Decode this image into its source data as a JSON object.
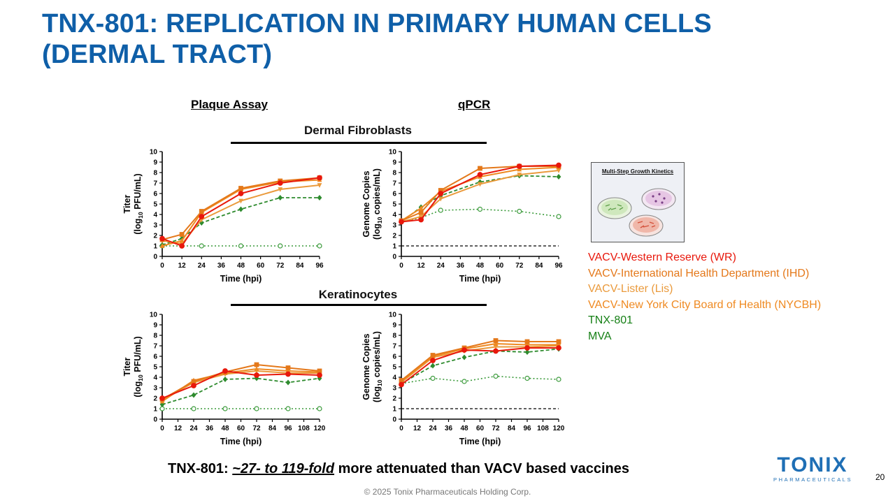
{
  "slide": {
    "title_line1": "TNX-801: REPLICATION IN PRIMARY HUMAN CELLS",
    "title_line2": "(DERMAL TRACT)",
    "col_plaque": "Plaque Assay",
    "col_qpcr": "qPCR",
    "section_fibroblasts": "Dermal Fibroblasts",
    "section_keratinocytes": "Keratinocytes",
    "inset_title": "Multi-Step Growth Kinetics",
    "bottom_prefix": "TNX-801: ",
    "bottom_tilde": "~",
    "bottom_fold": "27- to 119-fold",
    "bottom_suffix": " more attenuated than VACV based vaccines",
    "logo_word": "TONIX",
    "logo_sub": "PHARMACEUTICALS",
    "page_number": "20",
    "copyright": "© 2025 Tonix Pharmaceuticals Holding Corp."
  },
  "colors": {
    "title": "#0f5fa8",
    "WR": "#e8180c",
    "IHD": "#e4781a",
    "Lis": "#ea9a3c",
    "NYCBH": "#ef8a22",
    "TNX": "#2e8b2e",
    "MVA": "#3a9a3a"
  },
  "legend": [
    {
      "key": "WR",
      "label": "VACV-Western Reserve (WR)",
      "color": "#e8180c"
    },
    {
      "key": "IHD",
      "label": "VACV-International Health Department (IHD)",
      "color": "#e4781a"
    },
    {
      "key": "Lis",
      "label": "VACV-Lister (Lis)",
      "color": "#ea9a3c"
    },
    {
      "key": "NYCBH",
      "label": "VACV-New York City Board of Health (NYCBH)",
      "color": "#ef8a22"
    },
    {
      "key": "TNX",
      "label": "TNX-801",
      "color": "#168016"
    },
    {
      "key": "MVA",
      "label": "MVA",
      "color": "#168016"
    }
  ],
  "chart_data": [
    {
      "id": "fib-plaque",
      "type": "line",
      "section": "Dermal Fibroblasts",
      "assay": "Plaque Assay",
      "xlabel": "Time (hpi)",
      "ylabel_1": "Titer",
      "ylabel_2_pre": "(log",
      "ylabel_2_sub": "10",
      "ylabel_2_post": " PFU/mL)",
      "xlim": [
        0,
        96
      ],
      "ylim": [
        0,
        10
      ],
      "xticks": [
        0,
        12,
        24,
        36,
        48,
        60,
        72,
        84,
        96
      ],
      "yticks": [
        0,
        1,
        2,
        3,
        4,
        5,
        6,
        7,
        8,
        9,
        10
      ],
      "x": [
        0,
        12,
        24,
        48,
        72,
        96
      ],
      "series": [
        {
          "name": "WR",
          "values": [
            1.7,
            1.0,
            3.8,
            6.0,
            7.0,
            7.5
          ]
        },
        {
          "name": "IHD",
          "values": [
            1.6,
            2.1,
            4.3,
            6.5,
            7.2,
            7.5
          ]
        },
        {
          "name": "Lis",
          "values": [
            1.5,
            1.2,
            3.5,
            5.3,
            6.4,
            6.8
          ]
        },
        {
          "name": "NYCBH",
          "values": [
            1.0,
            1.5,
            4.2,
            6.4,
            7.1,
            7.3
          ]
        },
        {
          "name": "TNX-801",
          "values": [
            1.1,
            1.7,
            3.2,
            4.5,
            5.6,
            5.6
          ]
        },
        {
          "name": "MVA",
          "values": [
            1.0,
            1.0,
            1.0,
            1.0,
            1.0,
            1.0
          ]
        }
      ]
    },
    {
      "id": "fib-qpcr",
      "type": "line",
      "section": "Dermal Fibroblasts",
      "assay": "qPCR",
      "xlabel": "Time (hpi)",
      "ylabel_1": "Genome  Copies",
      "ylabel_2_pre": "(log",
      "ylabel_2_sub": "10",
      "ylabel_2_post": " copies/mL)",
      "xlim": [
        0,
        96
      ],
      "ylim": [
        0,
        10
      ],
      "xticks": [
        0,
        12,
        24,
        36,
        48,
        60,
        72,
        84,
        96
      ],
      "yticks": [
        0,
        1,
        2,
        3,
        4,
        5,
        6,
        7,
        8,
        9,
        10
      ],
      "reference_line": 1,
      "x": [
        0,
        12,
        24,
        48,
        72,
        96
      ],
      "series": [
        {
          "name": "WR",
          "values": [
            3.3,
            3.5,
            6.0,
            7.8,
            8.6,
            8.7
          ]
        },
        {
          "name": "IHD",
          "values": [
            3.4,
            4.2,
            6.3,
            8.4,
            8.6,
            8.6
          ]
        },
        {
          "name": "Lis",
          "values": [
            3.3,
            3.8,
            5.5,
            6.9,
            7.8,
            8.2
          ]
        },
        {
          "name": "NYCBH",
          "values": [
            3.4,
            4.6,
            6.2,
            7.6,
            8.3,
            8.5
          ]
        },
        {
          "name": "TNX-801",
          "values": [
            3.3,
            4.7,
            5.8,
            7.1,
            7.7,
            7.6
          ]
        },
        {
          "name": "MVA",
          "values": [
            3.3,
            3.7,
            4.4,
            4.5,
            4.3,
            3.8
          ]
        }
      ]
    },
    {
      "id": "ker-plaque",
      "type": "line",
      "section": "Keratinocytes",
      "assay": "Plaque Assay",
      "xlabel": "Time (hpi)",
      "ylabel_1": "Titer",
      "ylabel_2_pre": "(log",
      "ylabel_2_sub": "10",
      "ylabel_2_post": " PFU/mL)",
      "xlim": [
        0,
        120
      ],
      "ylim": [
        0,
        10
      ],
      "xticks": [
        0,
        12,
        24,
        36,
        48,
        60,
        72,
        84,
        96,
        108,
        120
      ],
      "yticks": [
        0,
        1,
        2,
        3,
        4,
        5,
        6,
        7,
        8,
        9,
        10
      ],
      "x": [
        0,
        24,
        48,
        72,
        96,
        120
      ],
      "series": [
        {
          "name": "WR",
          "values": [
            2.0,
            3.2,
            4.6,
            4.2,
            4.3,
            4.2
          ]
        },
        {
          "name": "IHD",
          "values": [
            1.9,
            3.6,
            4.5,
            5.2,
            4.9,
            4.6
          ]
        },
        {
          "name": "Lis",
          "values": [
            1.8,
            3.5,
            4.3,
            4.6,
            4.4,
            4.4
          ]
        },
        {
          "name": "NYCBH",
          "values": [
            1.7,
            3.7,
            4.4,
            4.8,
            4.6,
            4.5
          ]
        },
        {
          "name": "TNX-801",
          "values": [
            1.4,
            2.3,
            3.8,
            3.9,
            3.5,
            3.9
          ]
        },
        {
          "name": "MVA",
          "values": [
            1.0,
            1.0,
            1.0,
            1.0,
            1.0,
            1.0
          ]
        }
      ]
    },
    {
      "id": "ker-qpcr",
      "type": "line",
      "section": "Keratinocytes",
      "assay": "qPCR",
      "xlabel": "Time (hpi)",
      "ylabel_1": "Genome  Copies",
      "ylabel_2_pre": "(log",
      "ylabel_2_sub": "10",
      "ylabel_2_post": " copies/mL)",
      "xlim": [
        0,
        120
      ],
      "ylim": [
        0,
        10
      ],
      "xticks": [
        0,
        12,
        24,
        36,
        48,
        60,
        72,
        84,
        96,
        108,
        120
      ],
      "yticks": [
        0,
        1,
        2,
        3,
        4,
        5,
        6,
        7,
        8,
        9,
        10
      ],
      "reference_line": 1,
      "x": [
        0,
        24,
        48,
        72,
        96,
        120
      ],
      "series": [
        {
          "name": "WR",
          "values": [
            3.3,
            5.6,
            6.6,
            6.5,
            6.8,
            6.8
          ]
        },
        {
          "name": "IHD",
          "values": [
            3.7,
            6.1,
            6.8,
            7.5,
            7.4,
            7.4
          ]
        },
        {
          "name": "Lis",
          "values": [
            3.5,
            5.9,
            6.5,
            6.9,
            6.9,
            7.0
          ]
        },
        {
          "name": "NYCBH",
          "values": [
            3.6,
            6.0,
            6.7,
            7.2,
            7.1,
            7.1
          ]
        },
        {
          "name": "TNX-801",
          "values": [
            3.4,
            5.1,
            5.9,
            6.5,
            6.4,
            6.7
          ]
        },
        {
          "name": "MVA",
          "values": [
            3.4,
            3.9,
            3.6,
            4.1,
            3.9,
            3.8
          ]
        }
      ]
    }
  ]
}
